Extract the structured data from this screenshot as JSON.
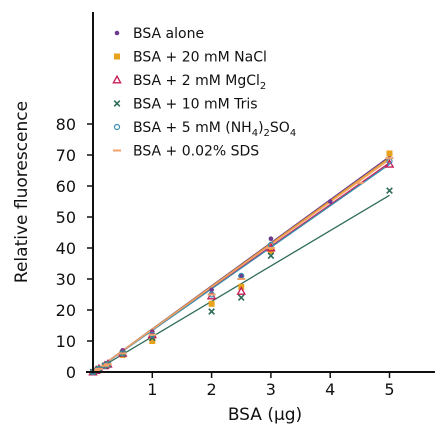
{
  "chart_data": {
    "type": "scatter",
    "xlabel": "BSA (µg)",
    "ylabel": "Relative fluorescence",
    "xlim": [
      0,
      6
    ],
    "ylim": [
      0,
      80
    ],
    "xticks": [
      1,
      2,
      3,
      4,
      5
    ],
    "yticks": [
      0,
      10,
      20,
      30,
      40,
      50,
      60,
      70,
      80
    ],
    "legend_position": "top-left",
    "grid": false,
    "series": [
      {
        "name": "BSA alone",
        "label_parts": [
          "BSA alone"
        ],
        "color": "#6b3a8e",
        "marker": "dot",
        "x": [
          0,
          0.05,
          0.1,
          0.2,
          0.25,
          0.5,
          1,
          2,
          2.5,
          3,
          4,
          5
        ],
        "y": [
          0,
          0.5,
          1,
          2.5,
          3,
          7,
          13,
          26.5,
          31,
          43,
          55,
          70
        ],
        "fit": [
          [
            0,
            0
          ],
          [
            5,
            69.5
          ]
        ]
      },
      {
        "name": "BSA + 20 mM NaCl",
        "label_parts": [
          "BSA + 20 mM NaCl"
        ],
        "color": "#e8a21c",
        "marker": "square",
        "x": [
          0,
          0.05,
          0.1,
          0.2,
          0.25,
          0.5,
          1,
          2,
          2.5,
          3,
          5
        ],
        "y": [
          0,
          0.5,
          1,
          2,
          2.5,
          5.5,
          10,
          22,
          27.5,
          39,
          70.5
        ],
        "fit": [
          [
            0,
            0
          ],
          [
            5,
            69
          ]
        ]
      },
      {
        "name": "BSA + 2 mM MgCl2",
        "label_parts": [
          "BSA + 2 mM MgCl",
          "2"
        ],
        "color": "#c81f5a",
        "marker": "triangle",
        "x": [
          0,
          0.05,
          0.1,
          0.2,
          0.25,
          0.5,
          1,
          2,
          2.5,
          3,
          5
        ],
        "y": [
          0,
          0.5,
          1,
          2,
          2.5,
          6,
          12,
          24.5,
          26,
          40,
          67
        ],
        "fit": [
          [
            0,
            0
          ],
          [
            5,
            67.5
          ]
        ]
      },
      {
        "name": "BSA + 10 mM Tris",
        "label_parts": [
          "BSA + 10 mM Tris"
        ],
        "color": "#2e6b5a",
        "marker": "cross",
        "x": [
          0,
          0.05,
          0.1,
          0.2,
          0.25,
          0.5,
          1,
          2,
          2.5,
          3,
          5
        ],
        "y": [
          0,
          0.5,
          1,
          2,
          2.5,
          6,
          11,
          19.5,
          24,
          37.5,
          58.5
        ],
        "fit": [
          [
            0,
            0
          ],
          [
            5,
            57
          ]
        ]
      },
      {
        "name": "BSA + 5 mM (NH4)2SO4",
        "label_parts": [
          "BSA + 5 mM (NH",
          "4",
          ")",
          "2",
          "SO",
          "4"
        ],
        "color": "#3a8fb0",
        "marker": "circle",
        "x": [
          0,
          0.05,
          0.1,
          0.2,
          0.25,
          0.5,
          1,
          2,
          2.5,
          3,
          5
        ],
        "y": [
          0,
          0.5,
          1,
          2,
          2.5,
          6,
          12,
          25,
          31,
          41,
          68
        ],
        "fit": [
          [
            0,
            0
          ],
          [
            5,
            67
          ]
        ]
      },
      {
        "name": "BSA + 0.02% SDS",
        "label_parts": [
          "BSA + 0.02% SDS"
        ],
        "color": "#f0a068",
        "marker": "dash",
        "x": [
          0,
          0.05,
          0.1,
          0.2,
          0.25,
          0.5,
          1,
          2,
          2.5,
          3,
          4.5,
          5
        ],
        "y": [
          0,
          0.5,
          1,
          2,
          2.5,
          6,
          12,
          25,
          30,
          40,
          61,
          69
        ],
        "fit": [
          [
            0,
            0
          ],
          [
            5,
            68.5
          ]
        ]
      }
    ]
  }
}
